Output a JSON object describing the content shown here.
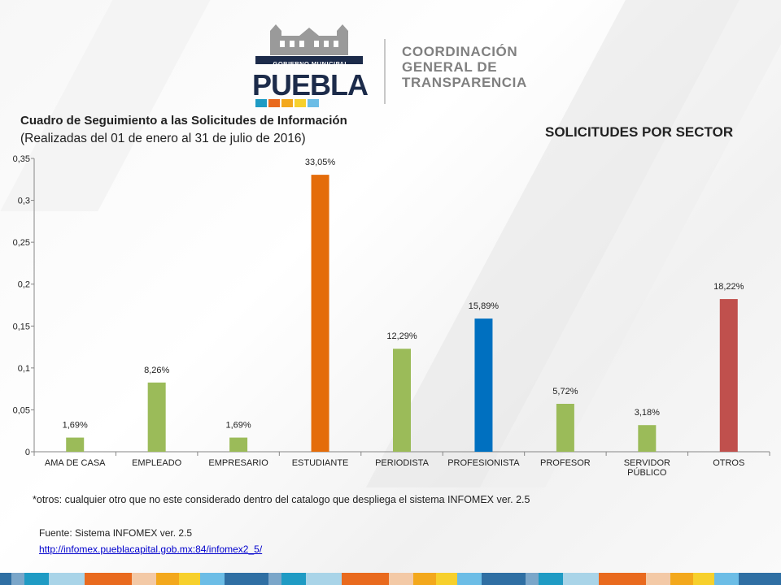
{
  "header": {
    "logo_crest_text": "GOBIERNO MUNICIPAL",
    "logo_word": "PUEBLA",
    "org_lines": [
      "COORDINACIÓN",
      "GENERAL DE",
      "TRANSPARENCIA"
    ]
  },
  "titles": {
    "main": "Cuadro de Seguimiento a las Solicitudes de Información",
    "sub": "(Realizadas del 01 de enero al 31 de julio de 2016)",
    "chart": "SOLICITUDES POR SECTOR"
  },
  "chart_data": {
    "type": "bar",
    "title": "SOLICITUDES POR SECTOR",
    "categories": [
      "AMA DE CASA",
      "EMPLEADO",
      "EMPRESARIO",
      "ESTUDIANTE",
      "PERIODISTA",
      "PROFESIONISTA",
      "PROFESOR",
      "SERVIDOR PÚBLICO",
      "OTROS"
    ],
    "values": [
      0.0169,
      0.0826,
      0.0169,
      0.3305,
      0.1229,
      0.1589,
      0.0572,
      0.0318,
      0.1822
    ],
    "data_labels": [
      "1,69%",
      "8,26%",
      "1,69%",
      "33,05%",
      "12,29%",
      "15,89%",
      "5,72%",
      "3,18%",
      "18,22%"
    ],
    "bar_colors": [
      "#9bbb59",
      "#9bbb59",
      "#9bbb59",
      "#e46c0a",
      "#9bbb59",
      "#0070c0",
      "#9bbb59",
      "#9bbb59",
      "#c0504d"
    ],
    "ylim": [
      0,
      0.35
    ],
    "yticks": [
      0,
      0.05,
      0.1,
      0.15,
      0.2,
      0.25,
      0.3,
      0.35
    ],
    "ytick_labels": [
      "0",
      "0,05",
      "0,1",
      "0,15",
      "0,2",
      "0,25",
      "0,3",
      "0,35"
    ],
    "xlabel": "",
    "ylabel": "",
    "grid": false,
    "legend": "none"
  },
  "footer": {
    "note": "*otros: cualquier otro que no este considerado dentro del catalogo que despliega el sistema INFOMEX ver. 2.5",
    "source": "Fuente: Sistema INFOMEX ver. 2.5",
    "link": "http://infomex.pueblacapital.gob.mx:84/infomex2_5/"
  },
  "colors": {
    "accent_orange": "#e46c0a",
    "accent_blue": "#0070c0",
    "accent_red": "#c0504d",
    "bar_green": "#9bbb59",
    "logo_navy": "#1c2b4a",
    "logo_strip": [
      "#1f9bc4",
      "#e96a1e",
      "#f3a81c",
      "#f7d02c",
      "#6cbde6"
    ],
    "bottom_band": [
      "#2f6fa3",
      "#7aa6c9",
      "#1f9bc4",
      "#a9d4e8",
      "#e96a1e",
      "#f3c9a6",
      "#f3a81c",
      "#f7d02c",
      "#6cbde6",
      "#2f6fa3"
    ]
  }
}
